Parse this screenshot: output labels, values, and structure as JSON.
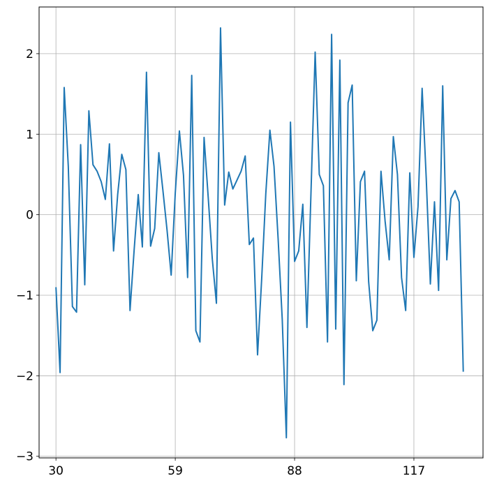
{
  "chart_data": {
    "type": "line",
    "x": [
      30,
      31,
      32,
      33,
      34,
      35,
      36,
      37,
      38,
      39,
      40,
      41,
      42,
      43,
      44,
      45,
      46,
      47,
      48,
      49,
      50,
      51,
      52,
      53,
      54,
      55,
      56,
      57,
      58,
      59,
      60,
      61,
      62,
      63,
      64,
      65,
      66,
      67,
      68,
      69,
      70,
      71,
      72,
      73,
      74,
      75,
      76,
      77,
      78,
      79,
      80,
      81,
      82,
      83,
      84,
      85,
      86,
      87,
      88,
      89,
      90,
      91,
      92,
      93,
      94,
      95,
      96,
      97,
      98,
      99,
      100,
      101,
      102,
      103,
      104,
      105,
      106,
      107,
      108,
      109,
      110,
      111,
      112,
      113,
      114,
      115,
      116,
      117,
      118,
      119,
      120,
      121,
      122,
      123,
      124,
      125,
      126,
      127,
      128,
      129
    ],
    "values": [
      -0.9,
      -1.96,
      1.58,
      0.6,
      -1.14,
      -1.21,
      0.87,
      -0.87,
      1.29,
      0.62,
      0.54,
      0.41,
      0.19,
      0.88,
      -0.45,
      0.25,
      0.75,
      0.56,
      -1.19,
      -0.44,
      0.25,
      -0.4,
      1.77,
      -0.39,
      -0.17,
      0.77,
      0.3,
      -0.19,
      -0.75,
      0.27,
      1.04,
      0.49,
      -0.78,
      1.73,
      -1.44,
      -1.58,
      0.96,
      0.22,
      -0.55,
      -1.1,
      2.32,
      0.12,
      0.53,
      0.32,
      0.43,
      0.54,
      0.73,
      -0.37,
      -0.29,
      -1.74,
      -0.8,
      0.26,
      1.05,
      0.6,
      -0.3,
      -1.3,
      -2.77,
      1.15,
      -0.58,
      -0.45,
      0.13,
      -1.4,
      0.3,
      2.02,
      0.5,
      0.36,
      -1.58,
      2.24,
      -1.42,
      1.92,
      -2.11,
      1.39,
      1.61,
      -0.82,
      0.41,
      0.54,
      -0.83,
      -1.44,
      -1.31,
      0.54,
      -0.08,
      -0.56,
      0.97,
      0.5,
      -0.78,
      -1.19,
      0.52,
      -0.53,
      0.1,
      1.57,
      0.45,
      -0.86,
      0.16,
      -0.94,
      1.6,
      -0.56,
      0.2,
      0.3,
      0.16,
      -1.95
    ],
    "color": "#1f77b4",
    "xlim": [
      25.9,
      133.8
    ],
    "xticks": [
      30,
      59,
      88,
      117
    ],
    "ylim": [
      -3.02,
      2.58
    ],
    "yticks": [
      {
        "value": -3,
        "label": "−3"
      },
      {
        "value": -2,
        "label": "−2"
      },
      {
        "value": -1,
        "label": "−1"
      },
      0,
      1,
      2
    ],
    "grid": true
  }
}
